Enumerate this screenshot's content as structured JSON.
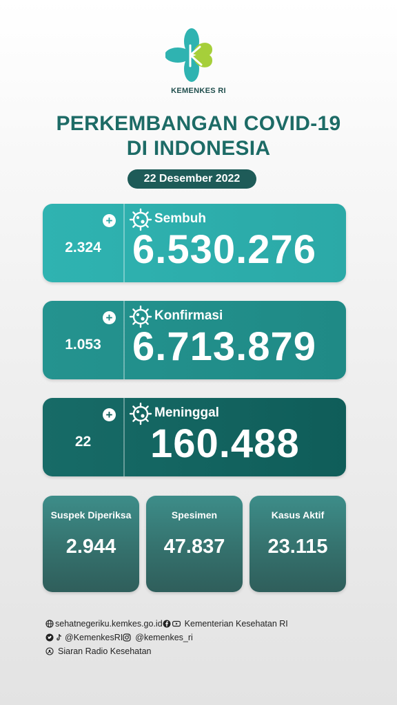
{
  "header": {
    "org": "KEMENKES RI",
    "title_line1": "PERKEMBANGAN COVID-19",
    "title_line2": "DI INDONESIA",
    "date": "22 Desember 2022"
  },
  "colors": {
    "title": "#1d6b66",
    "sembuh": "#2fb3b1",
    "konfirmasi": "#24938f",
    "meninggal": "#176b67",
    "small_card": "#3d8d89"
  },
  "cards": [
    {
      "label": "Sembuh",
      "value": "6.530.276",
      "delta": "2.324",
      "icon": "virus-icon"
    },
    {
      "label": "Konfirmasi",
      "value": "6.713.879",
      "delta": "1.053",
      "icon": "virus-icon"
    },
    {
      "label": "Meninggal",
      "value": "160.488",
      "delta": "22",
      "icon": "virus-icon"
    }
  ],
  "stats": [
    {
      "label": "Suspek Diperiksa",
      "value": "2.944"
    },
    {
      "label": "Spesimen",
      "value": "47.837"
    },
    {
      "label": "Kasus Aktif",
      "value": "23.115"
    }
  ],
  "footer": {
    "website": "sehatnegeriku.kemkes.go.id",
    "facebook_youtube": "Kementerian Kesehatan RI",
    "twitter_tiktok": "@KemenkesRI",
    "instagram": "@kemenkes_ri",
    "radio": "Siaran Radio Kesehatan"
  }
}
